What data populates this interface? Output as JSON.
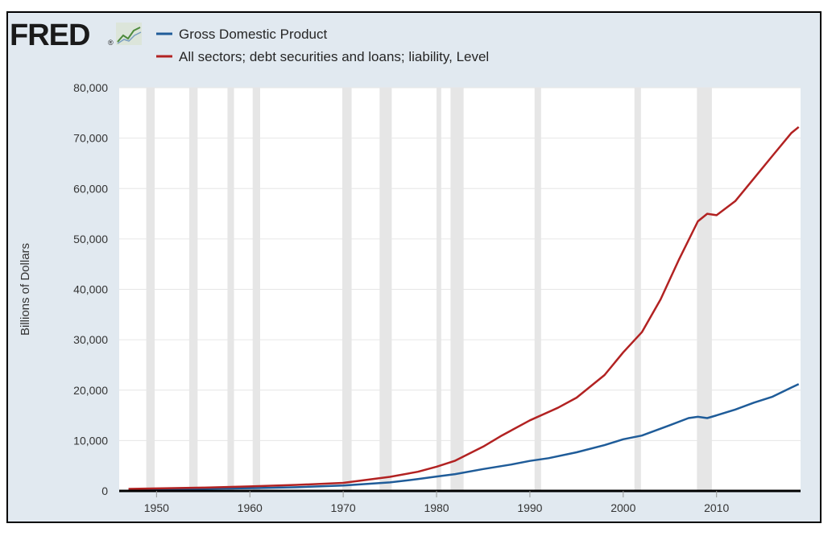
{
  "logo": {
    "text": "FRED",
    "icon": "line-graph-icon",
    "registered_mark": "®"
  },
  "legend": [
    {
      "label": "Gross Domestic Product",
      "color": "#1f5c99"
    },
    {
      "label": "All sectors; debt securities and loans; liability, Level",
      "color": "#b22222"
    }
  ],
  "colors": {
    "background": "#e1e9f0",
    "plot_area": "#ffffff",
    "recession_band": "#e6e6e6",
    "axis_line": "#000000",
    "gdp": "#1f5c99",
    "debt": "#b22222"
  },
  "chart_data": {
    "type": "line",
    "title": "",
    "xlabel": "",
    "ylabel": "Billions of Dollars",
    "xlim": [
      1946,
      2019
    ],
    "ylim": [
      0,
      80000
    ],
    "x_ticks": [
      "1950",
      "1960",
      "1970",
      "1980",
      "1990",
      "2000",
      "2010"
    ],
    "y_ticks": [
      "0",
      "10,000",
      "20,000",
      "30,000",
      "40,000",
      "50,000",
      "60,000",
      "70,000",
      "80,000"
    ],
    "grid": "horizontal",
    "legend_position": "top-left",
    "recessions": [
      [
        1948.9,
        1949.8
      ],
      [
        1953.5,
        1954.4
      ],
      [
        1957.6,
        1958.3
      ],
      [
        1960.3,
        1961.1
      ],
      [
        1969.9,
        1970.9
      ],
      [
        1973.9,
        1975.2
      ],
      [
        1980.0,
        1980.5
      ],
      [
        1981.5,
        1982.9
      ],
      [
        1990.5,
        1991.2
      ],
      [
        2001.2,
        2001.9
      ],
      [
        2007.9,
        2009.5
      ]
    ],
    "series": [
      {
        "name": "Gross Domestic Product",
        "x": [
          1947,
          1950,
          1955,
          1960,
          1965,
          1970,
          1975,
          1978,
          1980,
          1982,
          1985,
          1988,
          1990,
          1992,
          1995,
          1998,
          2000,
          2002,
          2005,
          2007,
          2008,
          2009,
          2010,
          2012,
          2014,
          2016,
          2018,
          2018.8
        ],
        "y": [
          250,
          300,
          430,
          550,
          740,
          1070,
          1690,
          2350,
          2860,
          3340,
          4340,
          5240,
          5960,
          6500,
          7660,
          9090,
          10250,
          10980,
          13040,
          14450,
          14710,
          14450,
          15000,
          16150,
          17520,
          18700,
          20500,
          21200
        ]
      },
      {
        "name": "All sectors; debt securities and loans; liability, Level",
        "x": [
          1947,
          1950,
          1955,
          1960,
          1965,
          1970,
          1975,
          1978,
          1980,
          1982,
          1985,
          1987,
          1990,
          1993,
          1995,
          1998,
          2000,
          2002,
          2004,
          2006,
          2008,
          2009,
          2010,
          2012,
          2014,
          2016,
          2018,
          2018.8
        ],
        "y": [
          400,
          500,
          650,
          900,
          1200,
          1600,
          2800,
          3800,
          4800,
          6000,
          8800,
          11000,
          14000,
          16500,
          18500,
          23000,
          27500,
          31500,
          38000,
          46000,
          53500,
          55000,
          54700,
          57500,
          62000,
          66500,
          71000,
          72200
        ]
      }
    ]
  }
}
